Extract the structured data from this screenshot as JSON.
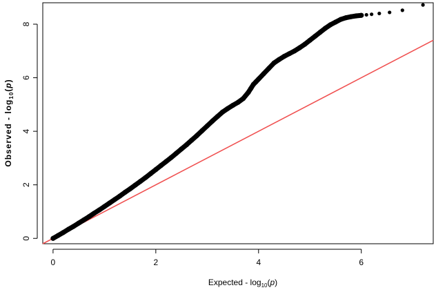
{
  "chart_data": {
    "type": "scatter",
    "title": "",
    "xlabel": {
      "prefix": "Expected  - log",
      "sub": "10",
      "open": "(",
      "var": "p",
      "close": ")"
    },
    "ylabel": {
      "prefix": "Observed  - log",
      "sub": "10",
      "open": "(",
      "var": "p",
      "close": ")"
    },
    "xlim": [
      -0.2,
      7.4
    ],
    "ylim": [
      -0.2,
      8.8
    ],
    "x_ticks": [
      0,
      2,
      4,
      6
    ],
    "x_tick_labels": [
      "0",
      "2",
      "4",
      "6"
    ],
    "y_ticks": [
      0,
      2,
      4,
      6,
      8
    ],
    "y_tick_labels": [
      "0",
      "2",
      "4",
      "6",
      "8"
    ],
    "grid": false,
    "legend": "none",
    "colors": {
      "points": "#000000",
      "reference_line": "#f05050"
    },
    "reference_line": {
      "from": [
        -0.2,
        -0.2
      ],
      "to": [
        7.4,
        7.4
      ]
    },
    "series": [
      {
        "x": [
          0,
          0.1,
          0.2,
          0.3,
          0.4,
          0.5,
          0.6,
          0.7,
          0.8,
          0.9,
          1.0,
          1.1,
          1.2,
          1.3,
          1.4,
          1.5,
          1.6,
          1.7,
          1.8,
          1.9,
          2.0,
          2.1,
          2.2,
          2.3,
          2.4,
          2.5,
          2.6,
          2.7,
          2.8,
          2.9,
          3.0,
          3.1,
          3.2,
          3.3,
          3.4,
          3.5,
          3.6,
          3.7,
          3.8,
          3.85,
          3.9,
          3.95,
          4.0,
          4.1,
          4.2,
          4.3,
          4.4,
          4.5,
          4.6,
          4.7,
          4.8,
          4.9,
          5.0,
          5.1,
          5.2,
          5.3,
          5.4,
          5.5,
          5.6,
          5.7,
          5.8,
          5.9,
          6.0,
          6.1,
          6.2,
          6.35,
          6.55,
          6.8,
          7.2
        ],
        "y": [
          0,
          0.11,
          0.22,
          0.34,
          0.45,
          0.57,
          0.69,
          0.81,
          0.94,
          1.06,
          1.19,
          1.32,
          1.45,
          1.58,
          1.72,
          1.85,
          1.99,
          2.13,
          2.27,
          2.42,
          2.57,
          2.72,
          2.87,
          3.02,
          3.18,
          3.34,
          3.5,
          3.67,
          3.84,
          4.02,
          4.2,
          4.38,
          4.55,
          4.72,
          4.85,
          4.97,
          5.08,
          5.22,
          5.45,
          5.6,
          5.75,
          5.85,
          5.95,
          6.15,
          6.35,
          6.55,
          6.68,
          6.8,
          6.9,
          7.0,
          7.12,
          7.25,
          7.4,
          7.55,
          7.7,
          7.85,
          7.98,
          8.08,
          8.18,
          8.24,
          8.28,
          8.31,
          8.33,
          8.35,
          8.37,
          8.4,
          8.44,
          8.52,
          8.72
        ]
      }
    ]
  }
}
